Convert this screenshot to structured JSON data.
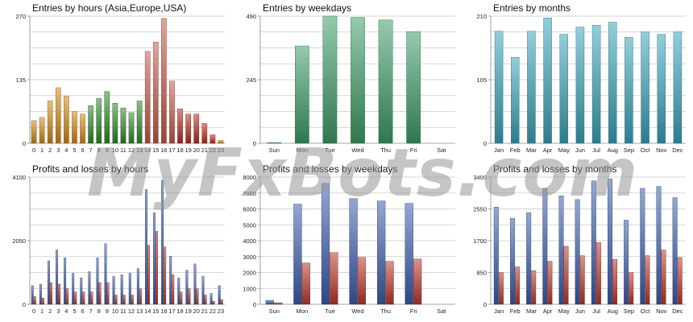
{
  "watermark": "MyFxBots.com",
  "chart_data": [
    {
      "type": "bar",
      "title": "Entries by hours (Asia,Europe,USA)",
      "categories": [
        "0",
        "1",
        "2",
        "3",
        "4",
        "5",
        "6",
        "7",
        "8",
        "9",
        "10",
        "11",
        "12",
        "13",
        "14",
        "15",
        "16",
        "17",
        "18",
        "19",
        "20",
        "21",
        "22",
        "23"
      ],
      "values": [
        48,
        55,
        90,
        118,
        100,
        68,
        62,
        80,
        95,
        110,
        85,
        75,
        65,
        90,
        195,
        215,
        265,
        132,
        73,
        62,
        62,
        42,
        18,
        6
      ],
      "colors": [
        "#d28a1c",
        "#d28a1c",
        "#d28a1c",
        "#d28a1c",
        "#d28a1c",
        "#d28a1c",
        "#d28a1c",
        "#2f8a28",
        "#2f8a28",
        "#2f8a28",
        "#2f8a28",
        "#2f8a28",
        "#2f8a28",
        "#2f8a28",
        "#c95a4a",
        "#c95a4a",
        "#c95a4a",
        "#c95a4a",
        "#b82d22",
        "#b82d22",
        "#b82d22",
        "#b82d22",
        "#b82d22",
        "#d28a1c"
      ],
      "yticks": [
        "0",
        "135",
        "270"
      ],
      "ylim": [
        0,
        270
      ]
    },
    {
      "type": "bar",
      "title": "Entries by weekdays",
      "categories": [
        "Sun",
        "Mon",
        "Tue",
        "Wed",
        "Thu",
        "Fri",
        "Sat"
      ],
      "values": [
        3,
        375,
        490,
        485,
        475,
        430,
        0
      ],
      "color": "#3f9e68",
      "yticks": [
        "0",
        "245",
        "490"
      ],
      "ylim": [
        0,
        490
      ]
    },
    {
      "type": "bar",
      "title": "Entries by months",
      "categories": [
        "Jan",
        "Feb",
        "Mar",
        "Apr",
        "May",
        "Jun",
        "Jul",
        "Aug",
        "Sep",
        "Oct",
        "Nov",
        "Dec"
      ],
      "values": [
        185,
        142,
        185,
        207,
        180,
        192,
        195,
        200,
        175,
        184,
        180,
        184
      ],
      "color": "#3aa5bd",
      "yticks": [
        "0",
        "105",
        "210"
      ],
      "ylim": [
        0,
        210
      ]
    },
    {
      "type": "bar",
      "title": "Profits and losses by hours",
      "categories": [
        "0",
        "1",
        "2",
        "3",
        "4",
        "5",
        "6",
        "7",
        "8",
        "9",
        "10",
        "11",
        "12",
        "13",
        "14",
        "15",
        "16",
        "17",
        "18",
        "19",
        "20",
        "21",
        "22",
        "23"
      ],
      "series": [
        {
          "values": [
            600,
            650,
            1400,
            1750,
            1500,
            1000,
            850,
            1050,
            1500,
            1950,
            900,
            950,
            1000,
            1150,
            3700,
            2950,
            4000,
            1550,
            850,
            1100,
            1300,
            900,
            350,
            600
          ]
        },
        {
          "values": [
            250,
            200,
            700,
            650,
            500,
            400,
            400,
            400,
            700,
            700,
            300,
            300,
            300,
            500,
            1900,
            2350,
            1850,
            950,
            400,
            500,
            500,
            300,
            100,
            150
          ]
        }
      ],
      "colors": [
        "#3c5fae",
        "#c0392b"
      ],
      "yticks": [
        "0",
        "2050",
        "4100"
      ],
      "ylim": [
        0,
        4100
      ]
    },
    {
      "type": "bar",
      "title": "Profits and losses by weekdays",
      "categories": [
        "Sun",
        "Mon",
        "Tue",
        "Wed",
        "Thu",
        "Fri",
        "Sat"
      ],
      "series": [
        {
          "values": [
            250,
            6300,
            7600,
            6650,
            6500,
            6350,
            0
          ]
        },
        {
          "values": [
            100,
            2600,
            3250,
            2950,
            2700,
            2850,
            0
          ]
        }
      ],
      "colors": [
        "#3c5fae",
        "#c0392b"
      ],
      "yticks": [
        "0",
        "1000",
        "2000",
        "3000",
        "4000",
        "5000",
        "6000",
        "7000",
        "8000"
      ],
      "ylim": [
        0,
        8000
      ]
    },
    {
      "type": "bar",
      "title": "Profits and losses by months",
      "categories": [
        "Jan",
        "Feb",
        "Mar",
        "Apr",
        "May",
        "Jun",
        "Jul",
        "Aug",
        "Sep",
        "Oct",
        "Nov",
        "Dec"
      ],
      "series": [
        {
          "values": [
            2600,
            2300,
            2450,
            3100,
            2900,
            2800,
            3300,
            3350,
            2250,
            3100,
            3150,
            2850
          ]
        },
        {
          "values": [
            850,
            1000,
            900,
            1150,
            1550,
            1300,
            1650,
            1200,
            850,
            1300,
            1450,
            1250
          ]
        }
      ],
      "colors": [
        "#3c5fae",
        "#c0392b"
      ],
      "yticks": [
        "0",
        "850",
        "1700",
        "2550",
        "3400"
      ],
      "ylim": [
        0,
        3400
      ]
    }
  ]
}
